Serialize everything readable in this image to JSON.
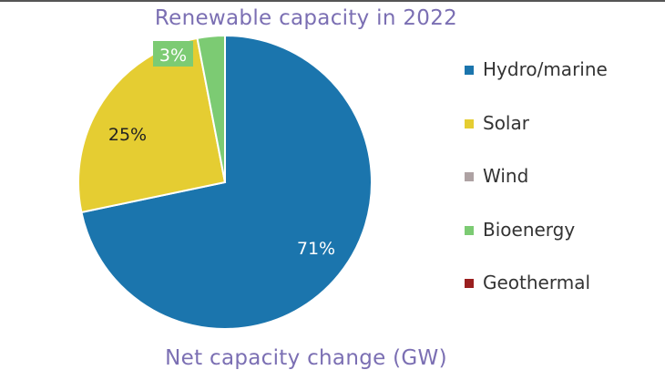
{
  "chart_data": {
    "type": "pie",
    "title": "Renewable capacity in 2022",
    "categories": [
      "Hydro/marine",
      "Solar",
      "Wind",
      "Bioenergy",
      "Geothermal"
    ],
    "values": [
      71,
      25,
      0,
      3,
      0
    ],
    "value_labels": [
      "71%",
      "25%",
      "",
      "3%",
      ""
    ],
    "colors": [
      "#1b75ad",
      "#e5cd32",
      "#aea2a3",
      "#7ccb73",
      "#9a1f1f"
    ],
    "legend_position": "right"
  },
  "next_chart": {
    "title": "Net capacity change (GW)"
  }
}
